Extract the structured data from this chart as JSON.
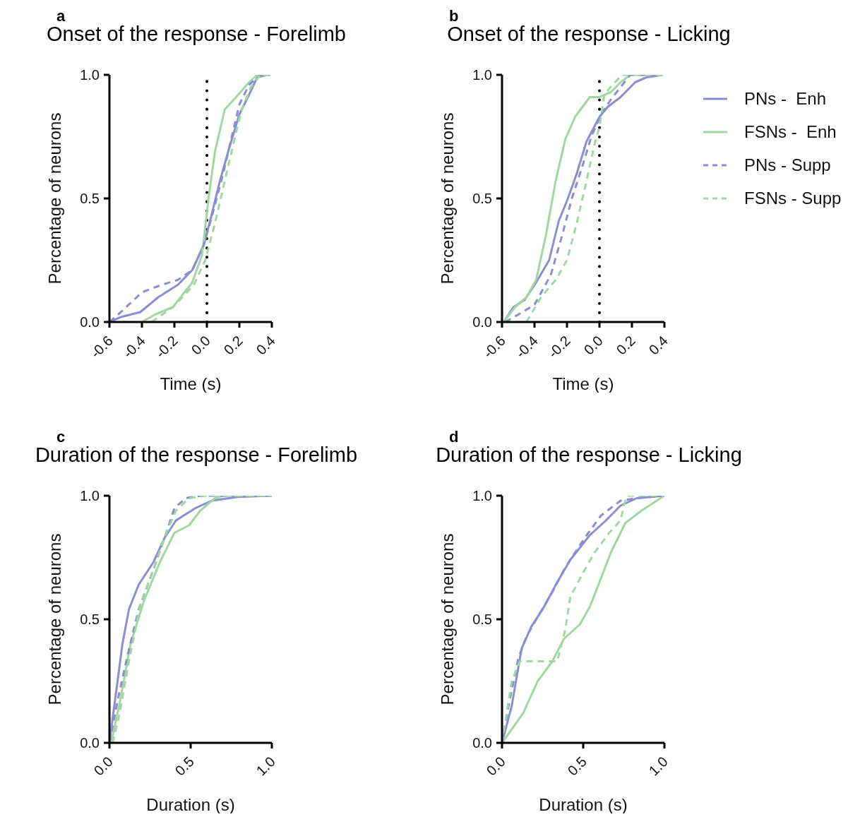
{
  "chart_data": [
    {
      "type": "line",
      "title": "Onset of the response - Forelimb",
      "annotations": [
        "a"
      ],
      "xlabel": "Time (s)",
      "ylabel": "Percentage of neurons",
      "xlim": [
        -0.6,
        0.4
      ],
      "xticks": [
        {
          "value": -0.6,
          "label": "-0.6"
        },
        {
          "value": -0.4,
          "label": "-0.4"
        },
        {
          "value": -0.2,
          "label": "-0.2"
        },
        {
          "value": 0,
          "label": "0.0"
        },
        {
          "value": 0.2,
          "label": "0.2"
        },
        {
          "value": 0.4,
          "label": "0.4"
        }
      ],
      "ylim": [
        0,
        1
      ],
      "yticks": [
        {
          "value": 0,
          "label": "0.0"
        },
        {
          "value": 0.5,
          "label": "0.5"
        },
        {
          "value": 1,
          "label": "1.0"
        }
      ],
      "ref_lines": [
        {
          "axis": "x",
          "value": 0,
          "color": "#000000",
          "line_style": "dotted"
        }
      ],
      "series": [
        {
          "color": "#8a8dd0",
          "line_style": "solid",
          "x": [
            -0.6,
            -0.53,
            -0.41,
            -0.3,
            -0.18,
            -0.09,
            -0.02,
            0.02,
            0.08,
            0.14,
            0.2,
            0.26,
            0.31,
            0.37
          ],
          "values": [
            0,
            0.02,
            0.04,
            0.1,
            0.15,
            0.21,
            0.31,
            0.41,
            0.57,
            0.71,
            0.84,
            0.92,
            0.99,
            1
          ]
        },
        {
          "color": "#a3d5a3",
          "line_style": "solid",
          "x": [
            -0.4,
            -0.32,
            -0.21,
            -0.09,
            -0.03,
            0.01,
            0.05,
            0.11,
            0.18,
            0.26,
            0.31,
            0.39
          ],
          "values": [
            0,
            0.03,
            0.06,
            0.16,
            0.27,
            0.5,
            0.69,
            0.86,
            0.91,
            0.97,
            1,
            1
          ]
        },
        {
          "color": "#8a8dd0",
          "line_style": "dashed",
          "x": [
            -0.6,
            -0.53,
            -0.4,
            -0.28,
            -0.18,
            -0.09,
            -0.02,
            0.04,
            0.1,
            0.15,
            0.2,
            0.26,
            0.33,
            0.39
          ],
          "values": [
            0,
            0.04,
            0.12,
            0.15,
            0.17,
            0.21,
            0.31,
            0.45,
            0.6,
            0.74,
            0.88,
            0.96,
            1,
            1
          ]
        },
        {
          "color": "#a3d5a3",
          "line_style": "dashed",
          "x": [
            -0.34,
            -0.21,
            -0.08,
            -0.01,
            0.05,
            0.11,
            0.17,
            0.21,
            0.27,
            0.33,
            0.39
          ],
          "values": [
            0,
            0.06,
            0.15,
            0.25,
            0.4,
            0.57,
            0.74,
            0.85,
            0.95,
            1,
            1
          ]
        }
      ]
    },
    {
      "type": "line",
      "title": "Onset of the response - Licking",
      "annotations": [
        "b"
      ],
      "xlabel": "Time (s)",
      "ylabel": "Percentage of neurons",
      "xlim": [
        -0.6,
        0.4
      ],
      "xticks": [
        {
          "value": -0.6,
          "label": "-0.6"
        },
        {
          "value": -0.4,
          "label": "-0.4"
        },
        {
          "value": -0.2,
          "label": "-0.2"
        },
        {
          "value": 0,
          "label": "0.0"
        },
        {
          "value": 0.2,
          "label": "0.2"
        },
        {
          "value": 0.4,
          "label": "0.4"
        }
      ],
      "ylim": [
        0,
        1
      ],
      "yticks": [
        {
          "value": 0,
          "label": "0.0"
        },
        {
          "value": 0.5,
          "label": "0.5"
        },
        {
          "value": 1,
          "label": "1.0"
        }
      ],
      "ref_lines": [
        {
          "axis": "x",
          "value": 0,
          "color": "#000000",
          "line_style": "dotted"
        }
      ],
      "legend": "right",
      "series": [
        {
          "name": "PNs -  Enh",
          "color": "#8a8dd0",
          "line_style": "solid",
          "x": [
            -0.59,
            -0.53,
            -0.46,
            -0.39,
            -0.31,
            -0.25,
            -0.2,
            -0.14,
            -0.08,
            0,
            0.05,
            0.13,
            0.22,
            0.29,
            0.39
          ],
          "values": [
            0,
            0.06,
            0.09,
            0.16,
            0.25,
            0.41,
            0.49,
            0.6,
            0.73,
            0.83,
            0.87,
            0.91,
            0.97,
            0.99,
            1
          ]
        },
        {
          "name": "FSNs -  Enh",
          "color": "#a3d5a3",
          "line_style": "solid",
          "x": [
            -0.59,
            -0.52,
            -0.45,
            -0.39,
            -0.33,
            -0.27,
            -0.21,
            -0.15,
            -0.06,
            0,
            0.07,
            0.13,
            0.19,
            0.39
          ],
          "values": [
            0,
            0.06,
            0.1,
            0.17,
            0.35,
            0.57,
            0.74,
            0.83,
            0.91,
            0.91,
            0.93,
            0.97,
            1,
            1
          ]
        },
        {
          "name": "PNs - Supp",
          "color": "#8a8dd0",
          "line_style": "dashed",
          "x": [
            -0.58,
            -0.5,
            -0.4,
            -0.3,
            -0.23,
            -0.17,
            -0.11,
            -0.05,
            0.01,
            0.07,
            0.13,
            0.19,
            0.39
          ],
          "values": [
            0,
            0.03,
            0.07,
            0.19,
            0.35,
            0.5,
            0.62,
            0.75,
            0.84,
            0.9,
            0.95,
            1,
            1
          ]
        },
        {
          "name": "FSNs - Supp",
          "color": "#a3d5a3",
          "line_style": "dashed",
          "x": [
            -0.45,
            -0.36,
            -0.27,
            -0.2,
            -0.14,
            -0.08,
            -0.03,
            0,
            0.03,
            0.08,
            0.14,
            0.39
          ],
          "values": [
            0,
            0.1,
            0.17,
            0.25,
            0.4,
            0.57,
            0.72,
            0.79,
            0.92,
            0.96,
            1,
            1
          ]
        }
      ]
    },
    {
      "type": "line",
      "title": "Duration of the response - Forelimb",
      "annotations": [
        "c"
      ],
      "xlabel": "Duration (s)",
      "ylabel": "Percentage of neurons",
      "xlim": [
        0,
        1
      ],
      "xticks": [
        {
          "value": 0,
          "label": "0.0"
        },
        {
          "value": 0.5,
          "label": "0.5"
        },
        {
          "value": 1,
          "label": "1.0"
        }
      ],
      "ylim": [
        0,
        1
      ],
      "yticks": [
        {
          "value": 0,
          "label": "0.0"
        },
        {
          "value": 0.5,
          "label": "0.5"
        },
        {
          "value": 1,
          "label": "1.0"
        }
      ],
      "series": [
        {
          "color": "#8a8dd0",
          "line_style": "solid",
          "x": [
            0,
            0.03,
            0.08,
            0.12,
            0.18,
            0.27,
            0.34,
            0.41,
            0.53,
            0.63,
            0.79,
            1
          ],
          "values": [
            0,
            0.15,
            0.4,
            0.54,
            0.64,
            0.73,
            0.83,
            0.9,
            0.95,
            0.98,
            0.995,
            1
          ]
        },
        {
          "color": "#a3d5a3",
          "line_style": "solid",
          "x": [
            0.01,
            0.06,
            0.13,
            0.21,
            0.31,
            0.4,
            0.49,
            0.56,
            0.65,
            0.7,
            1
          ],
          "values": [
            0,
            0.15,
            0.4,
            0.57,
            0.73,
            0.85,
            0.88,
            0.94,
            0.99,
            1,
            1
          ]
        },
        {
          "color": "#8a8dd0",
          "line_style": "dashed",
          "x": [
            0,
            0.05,
            0.11,
            0.18,
            0.27,
            0.34,
            0.4,
            0.47,
            0.56,
            1
          ],
          "values": [
            0,
            0.17,
            0.35,
            0.54,
            0.7,
            0.83,
            0.95,
            0.99,
            1,
            1
          ]
        },
        {
          "color": "#a3d5a3",
          "line_style": "dashed",
          "x": [
            0.02,
            0.06,
            0.12,
            0.19,
            0.27,
            0.35,
            0.41,
            0.49,
            0.59,
            1
          ],
          "values": [
            0,
            0.11,
            0.33,
            0.56,
            0.7,
            0.85,
            0.94,
            0.99,
            1,
            1
          ]
        }
      ]
    },
    {
      "type": "line",
      "title": "Duration of the response - Licking",
      "annotations": [
        "d"
      ],
      "xlabel": "Duration (s)",
      "ylabel": "Percentage of neurons",
      "xlim": [
        0,
        1
      ],
      "xticks": [
        {
          "value": 0,
          "label": "0.0"
        },
        {
          "value": 0.5,
          "label": "0.5"
        },
        {
          "value": 1,
          "label": "1.0"
        }
      ],
      "ylim": [
        0,
        1
      ],
      "yticks": [
        {
          "value": 0,
          "label": "0.0"
        },
        {
          "value": 0.5,
          "label": "0.5"
        },
        {
          "value": 1,
          "label": "1.0"
        }
      ],
      "series": [
        {
          "color": "#8a8dd0",
          "line_style": "solid",
          "x": [
            0,
            0.06,
            0.12,
            0.18,
            0.25,
            0.34,
            0.42,
            0.54,
            0.64,
            0.73,
            0.83,
            1
          ],
          "values": [
            0,
            0.15,
            0.38,
            0.47,
            0.54,
            0.65,
            0.74,
            0.84,
            0.9,
            0.96,
            0.99,
            1
          ]
        },
        {
          "color": "#a3d5a3",
          "line_style": "solid",
          "x": [
            0,
            0.13,
            0.22,
            0.31,
            0.38,
            0.48,
            0.54,
            0.6,
            0.67,
            0.76,
            0.86,
            1
          ],
          "values": [
            0,
            0.12,
            0.25,
            0.33,
            0.42,
            0.48,
            0.55,
            0.65,
            0.77,
            0.89,
            0.94,
            1
          ]
        },
        {
          "color": "#8a8dd0",
          "line_style": "dashed",
          "x": [
            0,
            0.04,
            0.1,
            0.15,
            0.22,
            0.31,
            0.39,
            0.51,
            0.61,
            0.73,
            0.83,
            1
          ],
          "values": [
            0,
            0.15,
            0.34,
            0.43,
            0.51,
            0.61,
            0.71,
            0.83,
            0.92,
            0.98,
            0.99,
            1
          ]
        },
        {
          "color": "#a3d5a3",
          "line_style": "dashed",
          "x": [
            0,
            0.06,
            0.11,
            0.34,
            0.39,
            0.42,
            0.5,
            0.57,
            0.66,
            0.73,
            0.75,
            0.77,
            1
          ],
          "values": [
            0,
            0.25,
            0.33,
            0.33,
            0.46,
            0.59,
            0.69,
            0.77,
            0.85,
            0.9,
            0.96,
            1,
            1
          ]
        }
      ]
    }
  ]
}
